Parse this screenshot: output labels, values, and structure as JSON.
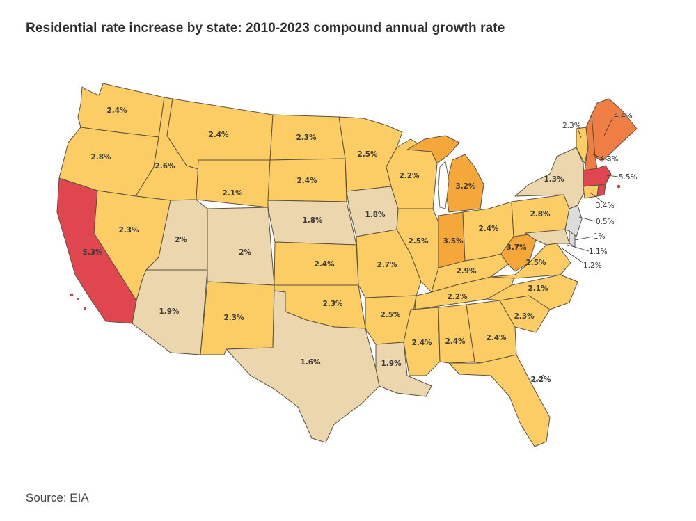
{
  "title": "Residential rate increase by state: 2010-2023 compound annual growth rate",
  "source": "Source: EIA",
  "legend_scale": {
    "low": "#ecd6ad",
    "mid": "#fbcd64",
    "high": "#f5a73a",
    "higher": "#ef7e45",
    "highest": "#e04650",
    "neutral": "#dcdcdc"
  },
  "states": [
    {
      "code": "WA",
      "value": "2.4%"
    },
    {
      "code": "OR",
      "value": "2.8%"
    },
    {
      "code": "CA",
      "value": "5.3%"
    },
    {
      "code": "ID",
      "value": "2.6%"
    },
    {
      "code": "NV",
      "value": "2.3%"
    },
    {
      "code": "MT",
      "value": "2.4%"
    },
    {
      "code": "WY",
      "value": "2.1%"
    },
    {
      "code": "UT",
      "value": "2%"
    },
    {
      "code": "CO",
      "value": "2%"
    },
    {
      "code": "AZ",
      "value": "1.9%"
    },
    {
      "code": "NM",
      "value": "2.3%"
    },
    {
      "code": "ND",
      "value": "2.3%"
    },
    {
      "code": "SD",
      "value": "2.4%"
    },
    {
      "code": "NE",
      "value": "1.8%"
    },
    {
      "code": "KS",
      "value": "2.4%"
    },
    {
      "code": "OK",
      "value": "2.3%"
    },
    {
      "code": "TX",
      "value": "1.6%"
    },
    {
      "code": "MN",
      "value": "2.5%"
    },
    {
      "code": "IA",
      "value": "1.8%"
    },
    {
      "code": "MO",
      "value": "2.7%"
    },
    {
      "code": "AR",
      "value": "2.5%"
    },
    {
      "code": "LA",
      "value": "1.9%"
    },
    {
      "code": "WI",
      "value": "2.2%"
    },
    {
      "code": "IL",
      "value": "2.5%"
    },
    {
      "code": "MI",
      "value": "3.2%"
    },
    {
      "code": "IN",
      "value": "3.5%"
    },
    {
      "code": "OH",
      "value": "2.4%"
    },
    {
      "code": "KY",
      "value": "2.9%"
    },
    {
      "code": "TN",
      "value": "2.2%"
    },
    {
      "code": "MS",
      "value": "2.4%"
    },
    {
      "code": "AL",
      "value": "2.4%"
    },
    {
      "code": "GA",
      "value": "2.4%"
    },
    {
      "code": "FL",
      "value": "2.2%"
    },
    {
      "code": "SC",
      "value": "2.3%"
    },
    {
      "code": "NC",
      "value": "2.1%"
    },
    {
      "code": "VA",
      "value": "2.5%"
    },
    {
      "code": "WV",
      "value": "3.7%"
    },
    {
      "code": "PA",
      "value": "2.8%"
    },
    {
      "code": "NY",
      "value": "1.3%"
    },
    {
      "code": "VT",
      "value": "2.3%"
    },
    {
      "code": "NH",
      "value": "4.3%"
    },
    {
      "code": "ME",
      "value": "4.4%"
    },
    {
      "code": "MA",
      "value": "5.5%"
    },
    {
      "code": "CT",
      "value": "3.4%"
    },
    {
      "code": "NJ",
      "value": "0.5%"
    },
    {
      "code": "DE",
      "value": "1%"
    },
    {
      "code": "MD",
      "value": "1.1%"
    },
    {
      "code": "DC",
      "value": "1.2%"
    }
  ]
}
